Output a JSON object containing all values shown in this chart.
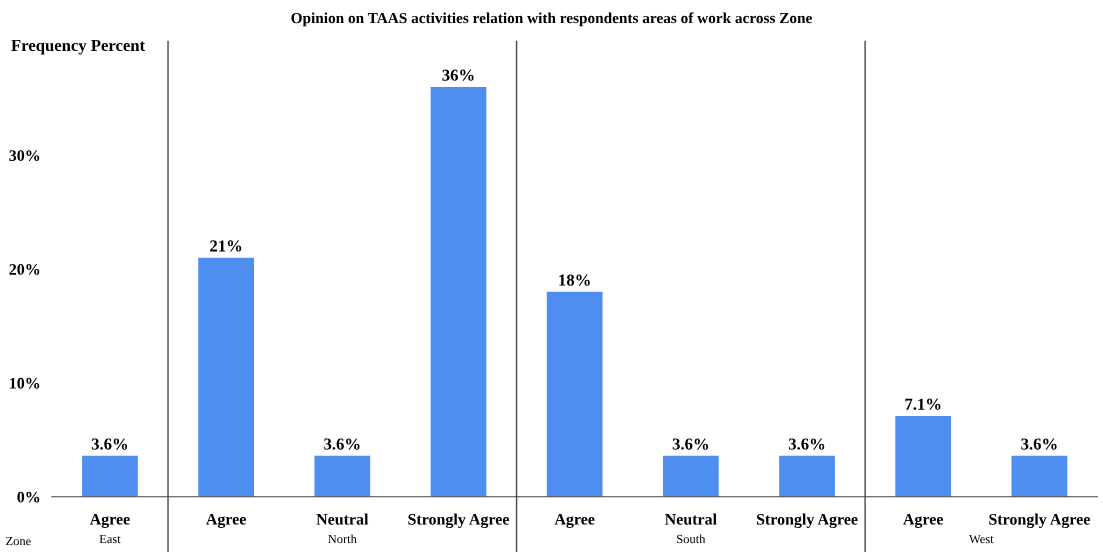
{
  "chart_data": {
    "type": "bar",
    "title": "Opinion on TAAS activities relation with respondents areas of work across Zone",
    "ylabel": "Frequency Percent",
    "annotations": [
      "Zone",
      "East",
      "North",
      "South",
      "West"
    ],
    "categories": [
      "Agree",
      "Agree",
      "Neutral",
      "Strongly Agree",
      "Agree",
      "Neutral",
      "Strongly Agree",
      "Agree",
      "Strongly Agree"
    ],
    "values": [
      3.6,
      21,
      3.6,
      36,
      18,
      3.6,
      3.6,
      7.1,
      3.6
    ],
    "value_labels": [
      "3.6%",
      "21%",
      "3.6%",
      "36%",
      "18%",
      "3.6%",
      "3.6%",
      "7.1%",
      "3.6%"
    ],
    "color": "#4d8ef0",
    "ylim": [
      0,
      40
    ],
    "yticks": [
      {
        "value": 0,
        "label": "0%"
      },
      {
        "value": 10,
        "label": "10%"
      },
      {
        "value": 20,
        "label": "20%"
      },
      {
        "value": 30,
        "label": "30%"
      }
    ],
    "grid": false
  }
}
